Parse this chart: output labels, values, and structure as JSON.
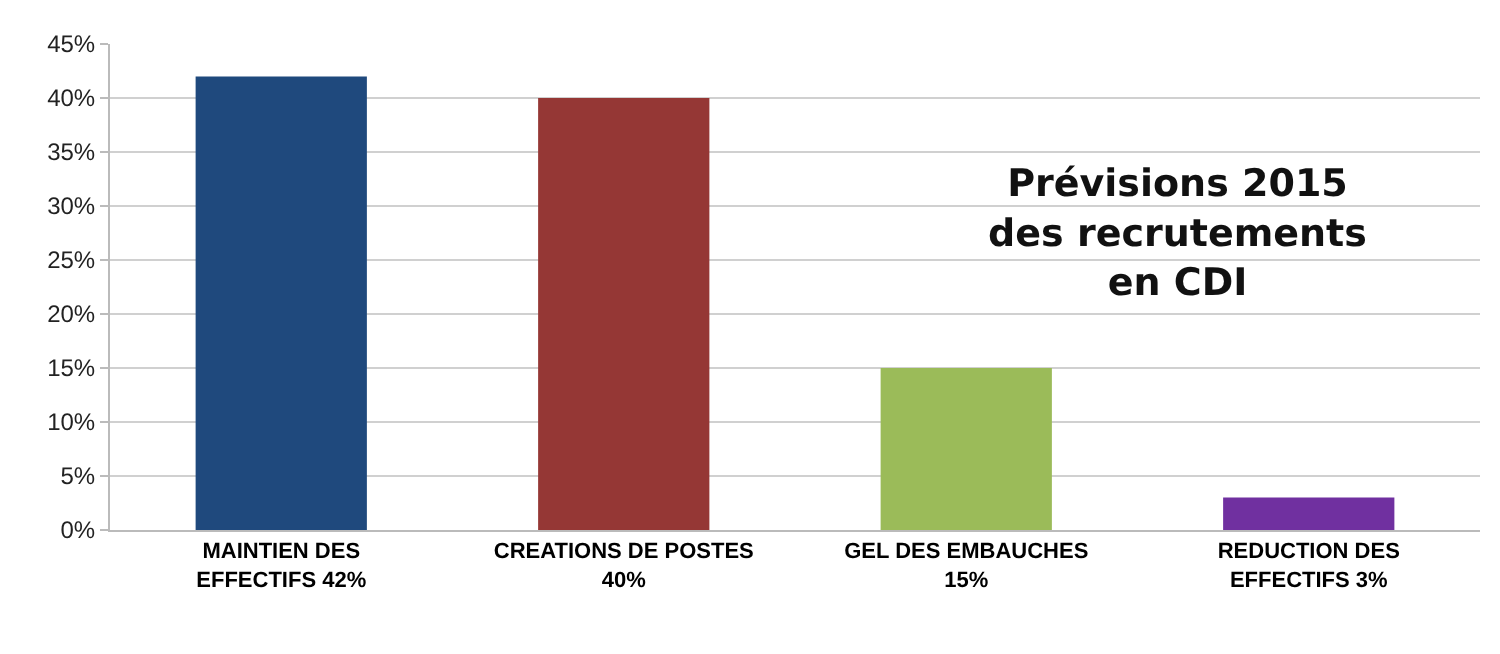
{
  "chart_data": {
    "type": "bar",
    "title": "Prévisions 2015 des recrutements en CDI",
    "categories": [
      "MAINTIEN DES EFFECTIFS 42%",
      "CREATIONS DE POSTES 40%",
      "GEL DES EMBAUCHES 15%",
      "REDUCTION DES EFFECTIFS 3%"
    ],
    "values": [
      42,
      40,
      15,
      3
    ],
    "colors": [
      "#1f497d",
      "#953735",
      "#9bbb59",
      "#7030a0"
    ],
    "ylim": [
      0,
      45
    ],
    "yticks": [
      {
        "value": 0,
        "label": "0%"
      },
      {
        "value": 5,
        "label": "5%"
      },
      {
        "value": 10,
        "label": "10%"
      },
      {
        "value": 15,
        "label": "15%"
      },
      {
        "value": 20,
        "label": "20%"
      },
      {
        "value": 25,
        "label": "25%"
      },
      {
        "value": 30,
        "label": "30%"
      },
      {
        "value": 35,
        "label": "35%"
      },
      {
        "value": 40,
        "label": "40%"
      },
      {
        "value": 45,
        "label": "45%"
      }
    ],
    "grid": true
  }
}
